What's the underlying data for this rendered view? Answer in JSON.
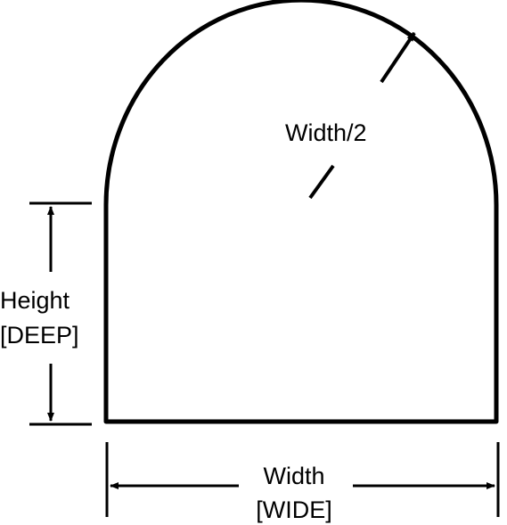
{
  "labels": {
    "radius": "Width/2",
    "height": "Height",
    "height_param": "[DEEP]",
    "width": "Width",
    "width_param": "[WIDE]"
  },
  "colors": {
    "stroke": "#000000",
    "background": "#ffffff"
  }
}
